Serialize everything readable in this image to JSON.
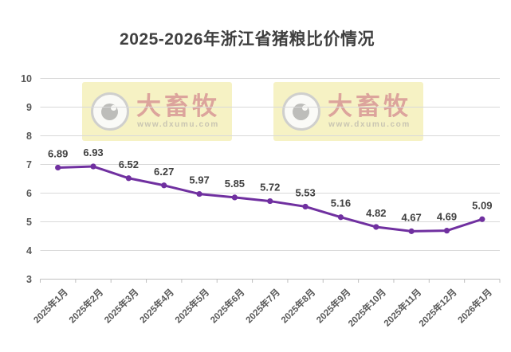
{
  "chart_data": {
    "type": "line",
    "title": "2025-2026年浙江省猪粮比价情况",
    "categories": [
      "2025年1月",
      "2025年2月",
      "2025年3月",
      "2025年4月",
      "2025年5月",
      "2025年6月",
      "2025年7月",
      "2025年8月",
      "2025年9月",
      "2025年10月",
      "2025年11月",
      "2025年12月",
      "2026年1月"
    ],
    "values": [
      6.89,
      6.93,
      6.52,
      6.27,
      5.97,
      5.85,
      5.72,
      5.53,
      5.16,
      4.82,
      4.67,
      4.69,
      5.09
    ],
    "ylim": [
      3,
      10
    ],
    "yticks": [
      3,
      4,
      5,
      6,
      7,
      8,
      9,
      10
    ],
    "grid": true,
    "legend": "none",
    "marker": "circle",
    "xlabel": "",
    "ylabel": ""
  },
  "watermark": {
    "brand": "大畜牧",
    "url": "www.dxumu.com"
  },
  "colors": {
    "line": "#7030A0",
    "grid": "#D9D9D9",
    "axis": "#BFBFBF",
    "axis_label": "#595959",
    "data_label": "#404040",
    "title": "#404040",
    "watermark_bg": "#F6F2C4",
    "watermark_brand": "#DCA49C",
    "watermark_url": "#C9C5B2"
  }
}
